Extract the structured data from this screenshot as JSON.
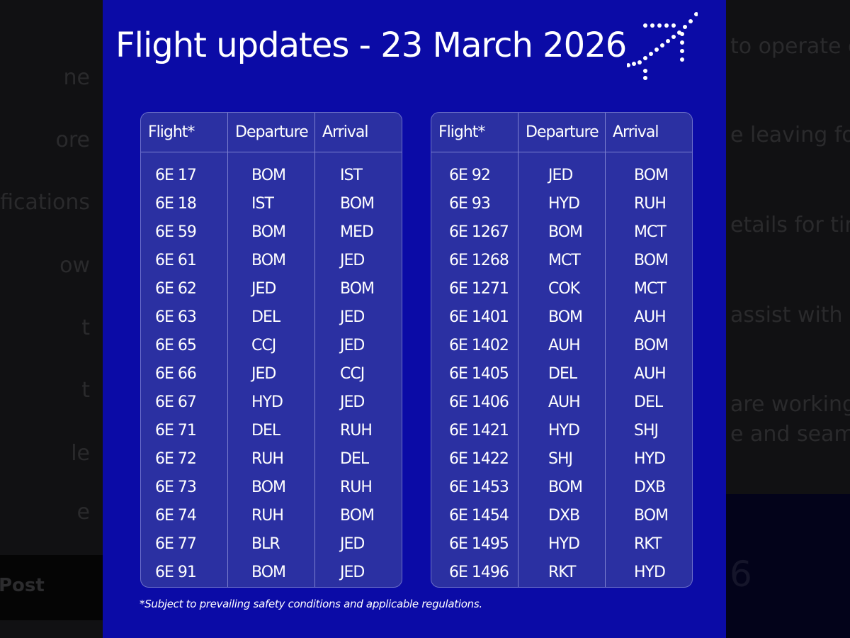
{
  "background": {
    "left_fragments": [
      "ne",
      "ore",
      "fications",
      "ow",
      "t",
      "t",
      "le",
      "e"
    ],
    "left_post_label": "Post",
    "right_fragments": [
      "to operate on",
      "e leaving for th",
      "etails for timel",
      "assist with an",
      "are working in",
      "e and seamles"
    ],
    "right_bottom_fragment": "6"
  },
  "panel": {
    "title": "Flight updates - 23 March 2026",
    "logo": "indigo-dotted-plane-logo",
    "headers": [
      "Flight*",
      "Departure",
      "Arrival"
    ],
    "left_table": [
      [
        "6E 17",
        "BOM",
        "IST"
      ],
      [
        "6E 18",
        "IST",
        "BOM"
      ],
      [
        "6E 59",
        "BOM",
        "MED"
      ],
      [
        "6E 61",
        "BOM",
        "JED"
      ],
      [
        "6E 62",
        "JED",
        "BOM"
      ],
      [
        "6E 63",
        "DEL",
        "JED"
      ],
      [
        "6E 65",
        "CCJ",
        "JED"
      ],
      [
        "6E 66",
        "JED",
        "CCJ"
      ],
      [
        "6E 67",
        "HYD",
        "JED"
      ],
      [
        "6E 71",
        "DEL",
        "RUH"
      ],
      [
        "6E 72",
        "RUH",
        "DEL"
      ],
      [
        "6E 73",
        "BOM",
        "RUH"
      ],
      [
        "6E 74",
        "RUH",
        "BOM"
      ],
      [
        "6E 77",
        "BLR",
        "JED"
      ],
      [
        "6E 91",
        "BOM",
        "JED"
      ]
    ],
    "right_table": [
      [
        "6E 92",
        "JED",
        "BOM"
      ],
      [
        "6E 93",
        "HYD",
        "RUH"
      ],
      [
        "6E 1267",
        "BOM",
        "MCT"
      ],
      [
        "6E 1268",
        "MCT",
        "BOM"
      ],
      [
        "6E 1271",
        "COK",
        "MCT"
      ],
      [
        "6E 1401",
        "BOM",
        "AUH"
      ],
      [
        "6E 1402",
        "AUH",
        "BOM"
      ],
      [
        "6E 1405",
        "DEL",
        "AUH"
      ],
      [
        "6E 1406",
        "AUH",
        "DEL"
      ],
      [
        "6E 1421",
        "HYD",
        "SHJ"
      ],
      [
        "6E 1422",
        "SHJ",
        "HYD"
      ],
      [
        "6E 1453",
        "BOM",
        "DXB"
      ],
      [
        "6E 1454",
        "DXB",
        "BOM"
      ],
      [
        "6E 1495",
        "HYD",
        "RKT"
      ],
      [
        "6E 1496",
        "RKT",
        "HYD"
      ]
    ],
    "footnote": "*Subject to prevailing safety conditions and applicable regulations."
  },
  "colors": {
    "panel": "#0b0ba6",
    "table": "#2b30a2",
    "text": "#ffffff"
  }
}
